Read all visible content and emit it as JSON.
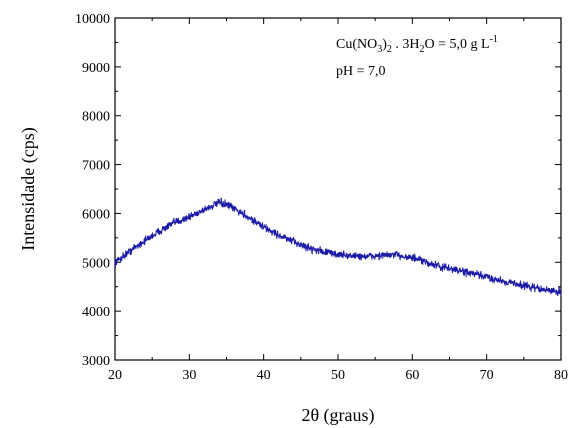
{
  "chart_data": {
    "type": "line",
    "xlabel": "2θ (graus)",
    "ylabel": "Intensidade (cps)",
    "xlim": [
      20,
      80
    ],
    "ylim": [
      3000,
      10000
    ],
    "x_ticks": [
      20,
      30,
      40,
      50,
      60,
      70,
      80
    ],
    "y_ticks": [
      3000,
      4000,
      5000,
      6000,
      7000,
      8000,
      9000,
      10000
    ],
    "grid": false,
    "line_color": "#1a1aa6",
    "annotations": {
      "line1": {
        "a": "Cu(NO",
        "sub1": "3",
        "b": ")",
        "sub2": "2",
        "c": " . 3H",
        "sub3": "2",
        "d": "O = 5,0 g L",
        "sup": "-1"
      },
      "line2": "pH = 7,0"
    },
    "series": [
      {
        "x": [
          20,
          22,
          24,
          26,
          28,
          30,
          32,
          33,
          34,
          35,
          36,
          38,
          40,
          42,
          44,
          46,
          48,
          50,
          52,
          54,
          56,
          58,
          60,
          62,
          64,
          66,
          68,
          70,
          72,
          74,
          76,
          78,
          80
        ],
        "values": [
          5000,
          5230,
          5440,
          5640,
          5810,
          5930,
          6080,
          6150,
          6220,
          6180,
          6100,
          5920,
          5720,
          5560,
          5420,
          5300,
          5220,
          5160,
          5130,
          5120,
          5140,
          5150,
          5090,
          4990,
          4900,
          4840,
          4770,
          4700,
          4620,
          4560,
          4490,
          4430,
          4390
        ]
      }
    ]
  }
}
